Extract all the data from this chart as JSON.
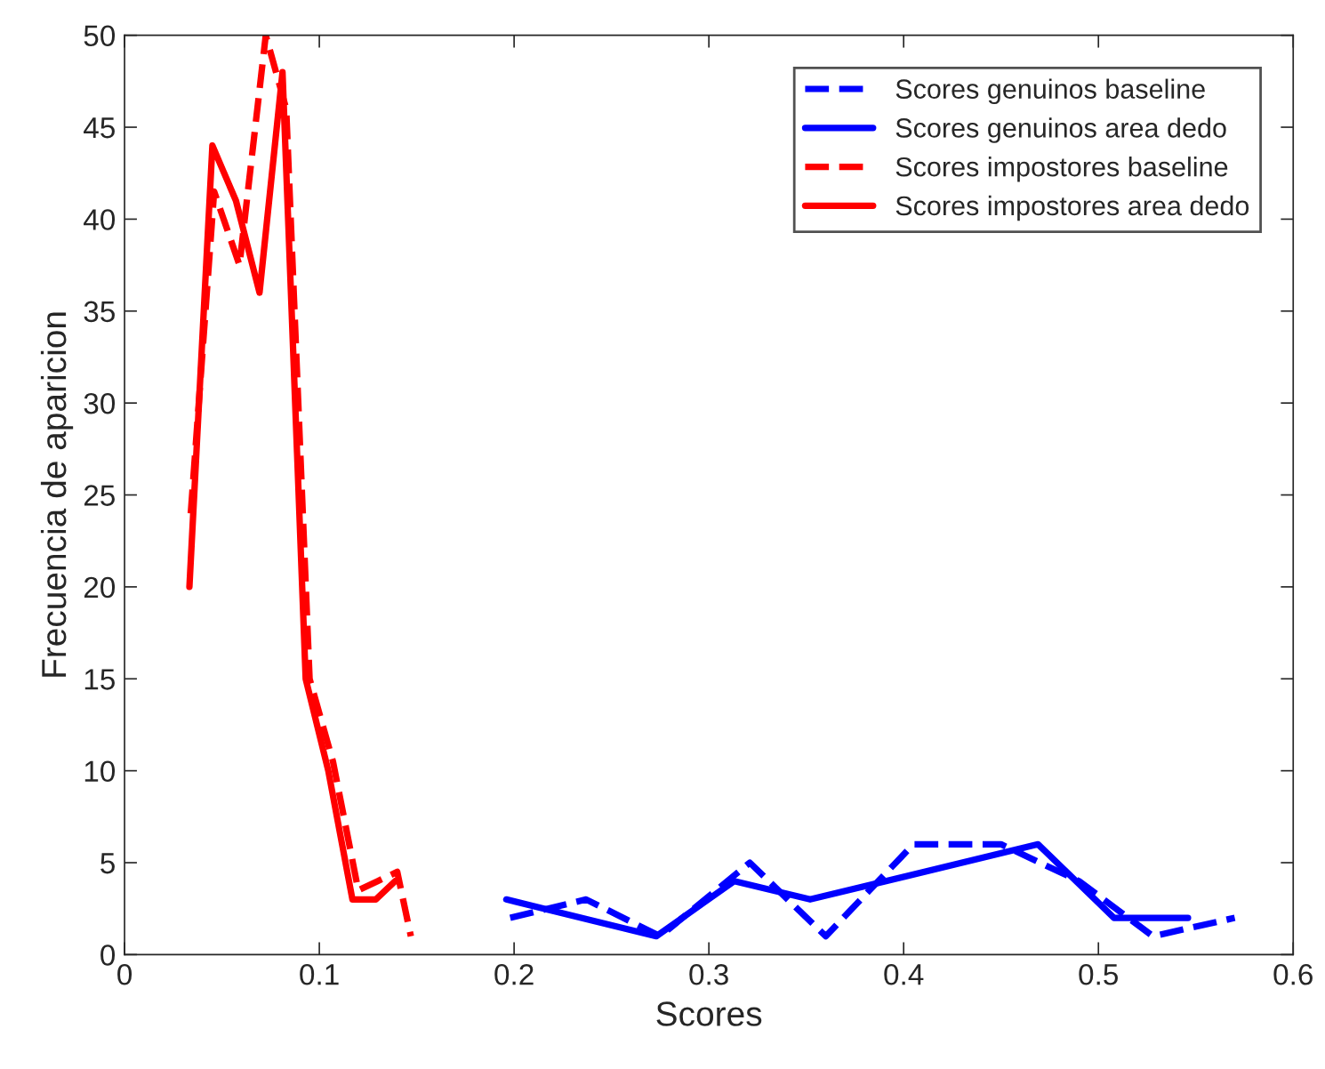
{
  "chart_data": {
    "type": "line",
    "xlabel": "Scores",
    "ylabel": "Frecuencia de aparicion",
    "xlim": [
      0,
      0.6
    ],
    "xticks": [
      0,
      0.1,
      0.2,
      0.3,
      0.4,
      0.5,
      0.6
    ],
    "ylim": [
      0,
      50
    ],
    "yticks": [
      0,
      5,
      10,
      15,
      20,
      25,
      30,
      35,
      40,
      45,
      50
    ],
    "grid": false,
    "legend": "top right",
    "marker": "none",
    "series": [
      {
        "name": "Scores genuinos baseline",
        "color": "#0000ff",
        "line_style": "dashed",
        "x": [
          0.198,
          0.237,
          0.275,
          0.321,
          0.36,
          0.405,
          0.45,
          0.49,
          0.528,
          0.57
        ],
        "values": [
          2,
          3,
          1,
          5,
          1,
          6,
          6,
          4,
          1,
          2
        ]
      },
      {
        "name": "Scores genuinos area dedo",
        "color": "#0000ff",
        "line_style": "solid",
        "x": [
          0.196,
          0.273,
          0.313,
          0.352,
          0.469,
          0.508,
          0.546
        ],
        "values": [
          3,
          1,
          4,
          3,
          6,
          2,
          2
        ]
      },
      {
        "name": "Scores impostores baseline",
        "color": "#ff0000",
        "line_style": "dashed",
        "x": [
          0.034,
          0.046,
          0.059,
          0.0725,
          0.083,
          0.095,
          0.107,
          0.12,
          0.13,
          0.14,
          0.147
        ],
        "values": [
          24,
          41.5,
          37.5,
          50,
          46,
          15,
          10.5,
          3.5,
          4,
          4.5,
          1
        ]
      },
      {
        "name": "Scores impostores area dedo",
        "color": "#ff0000",
        "line_style": "solid",
        "x": [
          0.0333,
          0.0451,
          0.0572,
          0.0693,
          0.0811,
          0.093,
          0.1046,
          0.117,
          0.129,
          0.139
        ],
        "values": [
          20,
          44,
          41,
          36,
          48,
          15,
          10,
          3,
          3,
          4
        ]
      }
    ]
  }
}
